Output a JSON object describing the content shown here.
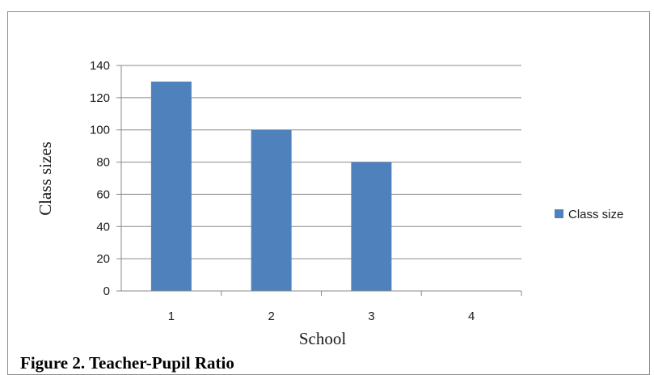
{
  "figure": {
    "caption": "Figure 2. Teacher-Pupil Ratio"
  },
  "chart_data": {
    "type": "bar",
    "categories": [
      "1",
      "2",
      "3",
      "4"
    ],
    "series": [
      {
        "name": "Class size",
        "values": [
          130,
          100,
          80,
          0
        ],
        "color": "#4f81bd"
      }
    ],
    "title": "",
    "xlabel": "School",
    "ylabel": "Class sizes",
    "ylim": [
      0,
      140
    ],
    "yticks": [
      0,
      20,
      40,
      60,
      80,
      100,
      120,
      140
    ],
    "grid": true,
    "legend": "right"
  }
}
